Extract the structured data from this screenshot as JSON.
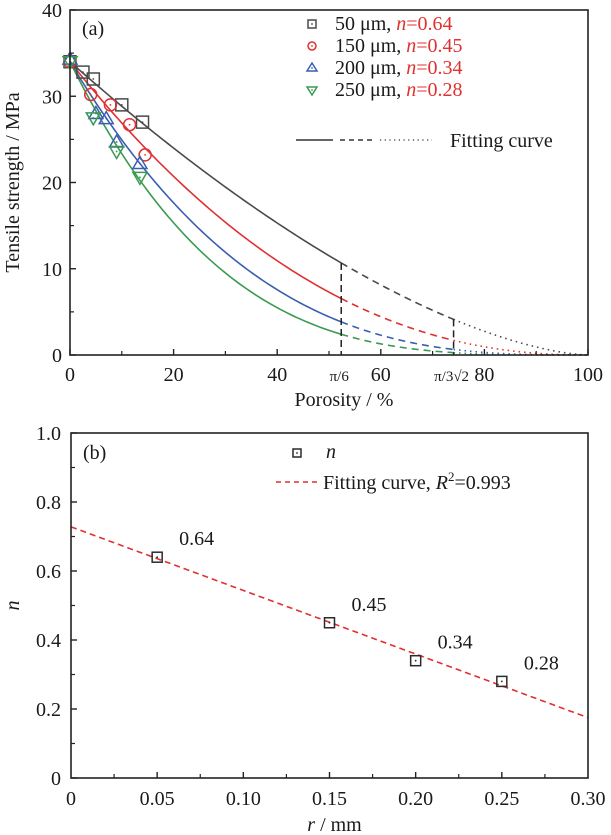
{
  "chart_data": [
    {
      "type": "scatter",
      "panel_label": "(a)",
      "xlabel": "Porosity / %",
      "ylabel": "Tensile strength / MPa",
      "xlim": [
        0,
        100
      ],
      "ylim": [
        0,
        40
      ],
      "xticks": [
        0,
        20,
        40,
        60,
        80,
        100
      ],
      "yticks": [
        0,
        10,
        20,
        30,
        40
      ],
      "special_xticks": [
        {
          "label": "π/6",
          "value": 52.36
        },
        {
          "label": "π/3√2",
          "value": 74.05
        }
      ],
      "grid": false,
      "legend_position": "top-right",
      "model": "sigma = sigma0 * (1 - P/100)^(1/n)",
      "sigma0": 34,
      "series": [
        {
          "name": "50 μm",
          "n_label": "n=0.64",
          "n": 0.64,
          "marker": "square",
          "color": "#4a4a4a",
          "points": [
            [
              0,
              34
            ],
            [
              2.5,
              32.8
            ],
            [
              4.5,
              32.0
            ],
            [
              10,
              29.0
            ],
            [
              14,
              27.0
            ]
          ]
        },
        {
          "name": "150 μm",
          "n_label": "n=0.45",
          "n": 0.45,
          "marker": "circle",
          "color": "#e03030",
          "points": [
            [
              0,
              34
            ],
            [
              4,
              30.2
            ],
            [
              7.8,
              29.0
            ],
            [
              11.5,
              26.7
            ],
            [
              14.5,
              23.2
            ]
          ]
        },
        {
          "name": "200 μm",
          "n_label": "n=0.34",
          "n": 0.34,
          "marker": "triangle-up",
          "color": "#3a5fb0",
          "points": [
            [
              0,
              34.3
            ],
            [
              5,
              28.0
            ],
            [
              7,
              27.4
            ],
            [
              9,
              24.7
            ],
            [
              13.5,
              22.2
            ]
          ]
        },
        {
          "name": "250 μm",
          "n_label": "n=0.28",
          "n": 0.28,
          "marker": "triangle-down",
          "color": "#3a9a50",
          "points": [
            [
              0,
              34
            ],
            [
              4.5,
              27.5
            ],
            [
              9,
              23.6
            ],
            [
              13.5,
              20.6
            ]
          ]
        }
      ],
      "fit_legend_label": "Fitting curve",
      "fit_segments": [
        "solid 0–π/6",
        "dashed π/6–π/3√2",
        "dotted π/3√2–100"
      ]
    },
    {
      "type": "scatter",
      "panel_label": "(b)",
      "xlabel_italic": "r",
      "xlabel_rest": " / mm",
      "ylabel": "n",
      "xlim": [
        0,
        0.3
      ],
      "ylim": [
        0,
        1.0
      ],
      "xticks": [
        "0",
        "0.05",
        "0.10",
        "0.15",
        "0.20",
        "0.25",
        "0.30"
      ],
      "xtick_values": [
        0,
        0.05,
        0.1,
        0.15,
        0.2,
        0.25,
        0.3
      ],
      "yticks": [
        "0",
        "0.2",
        "0.4",
        "0.6",
        "0.8",
        "1.0"
      ],
      "ytick_values": [
        0,
        0.2,
        0.4,
        0.6,
        0.8,
        1.0
      ],
      "grid": false,
      "legend_position": "top-right",
      "series": [
        {
          "name": "n",
          "marker": "square",
          "color": "#2a2a2a",
          "points": [
            [
              0.05,
              0.64
            ],
            [
              0.15,
              0.45
            ],
            [
              0.2,
              0.34
            ],
            [
              0.25,
              0.28
            ]
          ],
          "labels": [
            "0.64",
            "0.45",
            "0.34",
            "0.28"
          ]
        }
      ],
      "fit": {
        "name": "Fitting curve",
        "r2_label": "=0.993",
        "color": "#e03030",
        "style": "dashed",
        "x": [
          0,
          0.3
        ],
        "y": [
          0.728,
          0.175
        ]
      }
    }
  ]
}
